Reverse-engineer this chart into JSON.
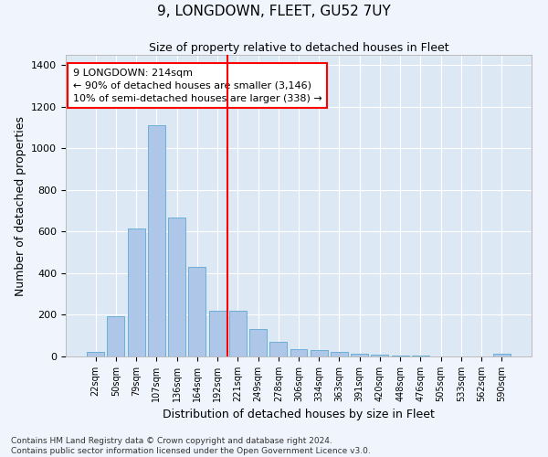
{
  "title": "9, LONGDOWN, FLEET, GU52 7UY",
  "subtitle": "Size of property relative to detached houses in Fleet",
  "xlabel": "Distribution of detached houses by size in Fleet",
  "ylabel": "Number of detached properties",
  "bar_color": "#aec6e8",
  "bar_edge_color": "#6baed6",
  "background_color": "#dde8f5",
  "grid_color": "#ffffff",
  "annotation_text": "9 LONGDOWN: 214sqm\n← 90% of detached houses are smaller (3,146)\n10% of semi-detached houses are larger (338) →",
  "footer_line1": "Contains HM Land Registry data © Crown copyright and database right 2024.",
  "footer_line2": "Contains public sector information licensed under the Open Government Licence v3.0.",
  "categories": [
    "22sqm",
    "50sqm",
    "79sqm",
    "107sqm",
    "136sqm",
    "164sqm",
    "192sqm",
    "221sqm",
    "249sqm",
    "278sqm",
    "306sqm",
    "334sqm",
    "363sqm",
    "391sqm",
    "420sqm",
    "448sqm",
    "476sqm",
    "505sqm",
    "533sqm",
    "562sqm",
    "590sqm"
  ],
  "values": [
    20,
    195,
    615,
    1110,
    670,
    430,
    220,
    220,
    130,
    72,
    35,
    30,
    20,
    15,
    10,
    5,
    3,
    2,
    1,
    1,
    12
  ],
  "red_line_index": 7,
  "ylim": [
    0,
    1450
  ],
  "yticks": [
    0,
    200,
    400,
    600,
    800,
    1000,
    1200,
    1400
  ],
  "fig_width": 6.0,
  "fig_height": 5.0,
  "dpi": 100
}
